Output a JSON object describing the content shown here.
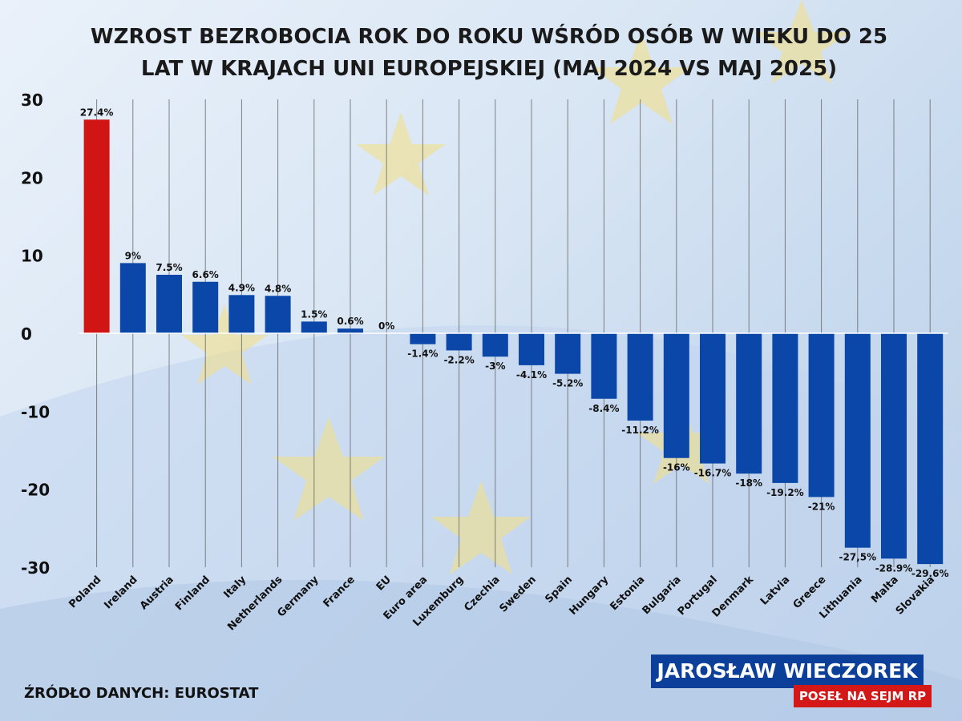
{
  "title": "WZROST BEZROBOCIA ROK DO ROKU WŚRÓD OSÓB W WIEKU DO 25 LAT W KRAJACH UNI EUROPEJSKIEJ (MAJ 2024 VS MAJ 2025)",
  "source": "ŹRÓDŁO DANYCH: EUROSTAT",
  "branding": {
    "name": "JAROSŁAW WIECZOREK",
    "subtitle": "POSEŁ NA SEJM RP"
  },
  "colors": {
    "highlight": "#d11414",
    "bar": "#0b47a8",
    "grid": "#555555"
  },
  "chart_data": {
    "type": "bar",
    "title": "WZROST BEZROBOCIA ROK DO ROKU WŚRÓD OSÓB W WIEKU DO 25 LAT W KRAJACH UNI EUROPEJSKIEJ (MAJ 2024 VS MAJ 2025)",
    "xlabel": "",
    "ylabel": "",
    "ylim": [
      -30,
      30
    ],
    "yticks": [
      30,
      20,
      10,
      0,
      -10,
      -20,
      -30
    ],
    "grid": true,
    "highlight_category": "Poland",
    "categories": [
      "Poland",
      "Ireland",
      "Austria",
      "Finland",
      "Italy",
      "Netherlands",
      "Germany",
      "France",
      "EU",
      "Euro area",
      "Luxemburg",
      "Czechia",
      "Sweden",
      "Spain",
      "Hungary",
      "Estonia",
      "Bulgaria",
      "Portugal",
      "Denmark",
      "Latvia",
      "Greece",
      "Lithuania",
      "Malta",
      "Slovakia"
    ],
    "values": [
      27.4,
      9,
      7.5,
      6.6,
      4.9,
      4.8,
      1.5,
      0.6,
      0,
      -1.4,
      -2.2,
      -3,
      -4.1,
      -5.2,
      -8.4,
      -11.2,
      -16,
      -16.7,
      -18,
      -19.2,
      -21,
      -27.5,
      -28.9,
      -29.6
    ],
    "data_labels": [
      "27.4%",
      "9%",
      "7.5%",
      "6.6%",
      "4.9%",
      "4.8%",
      "1.5%",
      "0.6%",
      "0%",
      "-1.4%",
      "-2.2%",
      "-3%",
      "-4.1%",
      "-5.2%",
      "-8.4%",
      "-11.2%",
      "-16%",
      "-16.7%",
      "-18%",
      "-19.2%",
      "-21%",
      "-27,5%",
      "-28.9%",
      "-29.6%"
    ]
  }
}
